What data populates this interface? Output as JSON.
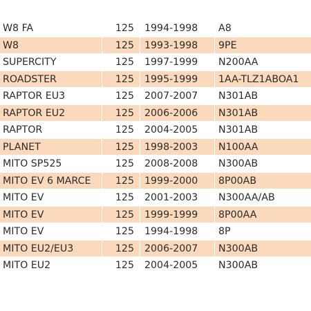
{
  "rows": [
    {
      "model": "W8 FA",
      "cc": "125",
      "years": "1994-1998",
      "code": "A8",
      "shaded": false
    },
    {
      "model": "W8",
      "cc": "125",
      "years": "1993-1998",
      "code": "9PE",
      "shaded": true
    },
    {
      "model": "SUPERCITY",
      "cc": "125",
      "years": "1997-1999",
      "code": "N200AA",
      "shaded": false
    },
    {
      "model": "ROADSTER",
      "cc": "125",
      "years": "1995-1999",
      "code": "1AA-TLZ1ABOA1",
      "shaded": true
    },
    {
      "model": "RAPTOR EU3",
      "cc": "125",
      "years": "2007-2007",
      "code": "N301AB",
      "shaded": false
    },
    {
      "model": "RAPTOR EU2",
      "cc": "125",
      "years": "2006-2006",
      "code": "N301AB",
      "shaded": true
    },
    {
      "model": "RAPTOR",
      "cc": "125",
      "years": "2004-2005",
      "code": "N301AB",
      "shaded": false
    },
    {
      "model": "PLANET",
      "cc": "125",
      "years": "1998-2003",
      "code": "N100AA",
      "shaded": true
    },
    {
      "model": "MITO SP525",
      "cc": "125",
      "years": "2008-2008",
      "code": "N300AB",
      "shaded": false
    },
    {
      "model": "MITO EV 6 MARCE",
      "cc": "125",
      "years": "1999-2000",
      "code": "8P00AB",
      "shaded": true
    },
    {
      "model": "MITO EV",
      "cc": "125",
      "years": "2001-2003",
      "code": "N300AA/AB",
      "shaded": false
    },
    {
      "model": "MITO EV",
      "cc": "125",
      "years": "1999-1999",
      "code": "8P00AA",
      "shaded": true
    },
    {
      "model": "MITO EV",
      "cc": "125",
      "years": "1994-1998",
      "code": "8P",
      "shaded": false
    },
    {
      "model": "MITO EU2/EU3",
      "cc": "125",
      "years": "2006-2007",
      "code": "N300AB",
      "shaded": true
    },
    {
      "model": "MITO EU2",
      "cc": "125",
      "years": "2004-2005",
      "code": "N300AB",
      "shaded": false
    }
  ],
  "colors": {
    "row_shade": "#fbd9bc",
    "text": "#2b2b2b"
  }
}
